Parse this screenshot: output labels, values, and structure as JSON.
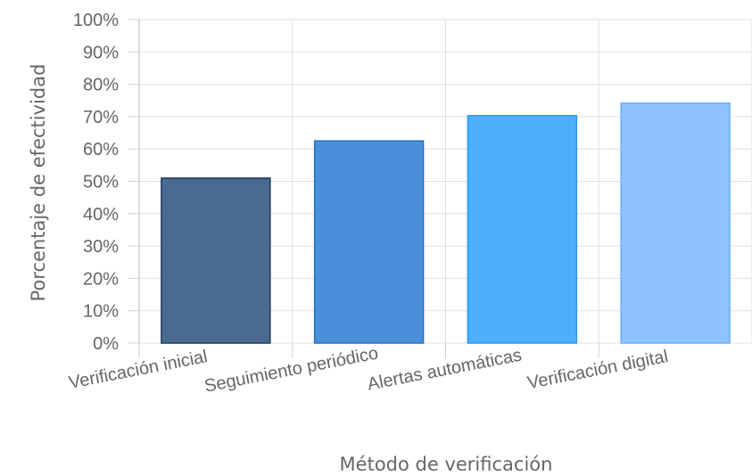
{
  "chart_data": {
    "type": "bar",
    "title": "",
    "xlabel": "Método de verificación",
    "ylabel": "Porcentaje de efectividad",
    "categories": [
      "Verificación inicial",
      "Seguimiento periódico",
      "Alertas automáticas",
      "Verificación digital"
    ],
    "values": [
      51,
      62.5,
      70.3,
      74.2
    ],
    "value_format": "percent",
    "ylim": [
      0,
      100
    ],
    "yticks": [
      "0%",
      "10%",
      "20%",
      "30%",
      "40%",
      "50%",
      "60%",
      "70%",
      "80%",
      "90%",
      "100%"
    ],
    "grid": true,
    "legend": "none",
    "bar_colors": [
      {
        "fill": "#4b6a8f",
        "stroke": "#1f3a5f"
      },
      {
        "fill": "#4a8fd9",
        "stroke": "#2a6fbf"
      },
      {
        "fill": "#4db0ff",
        "stroke": "#2b9ae8"
      },
      {
        "fill": "#8fc3ff",
        "stroke": "#6aaef5"
      }
    ]
  }
}
